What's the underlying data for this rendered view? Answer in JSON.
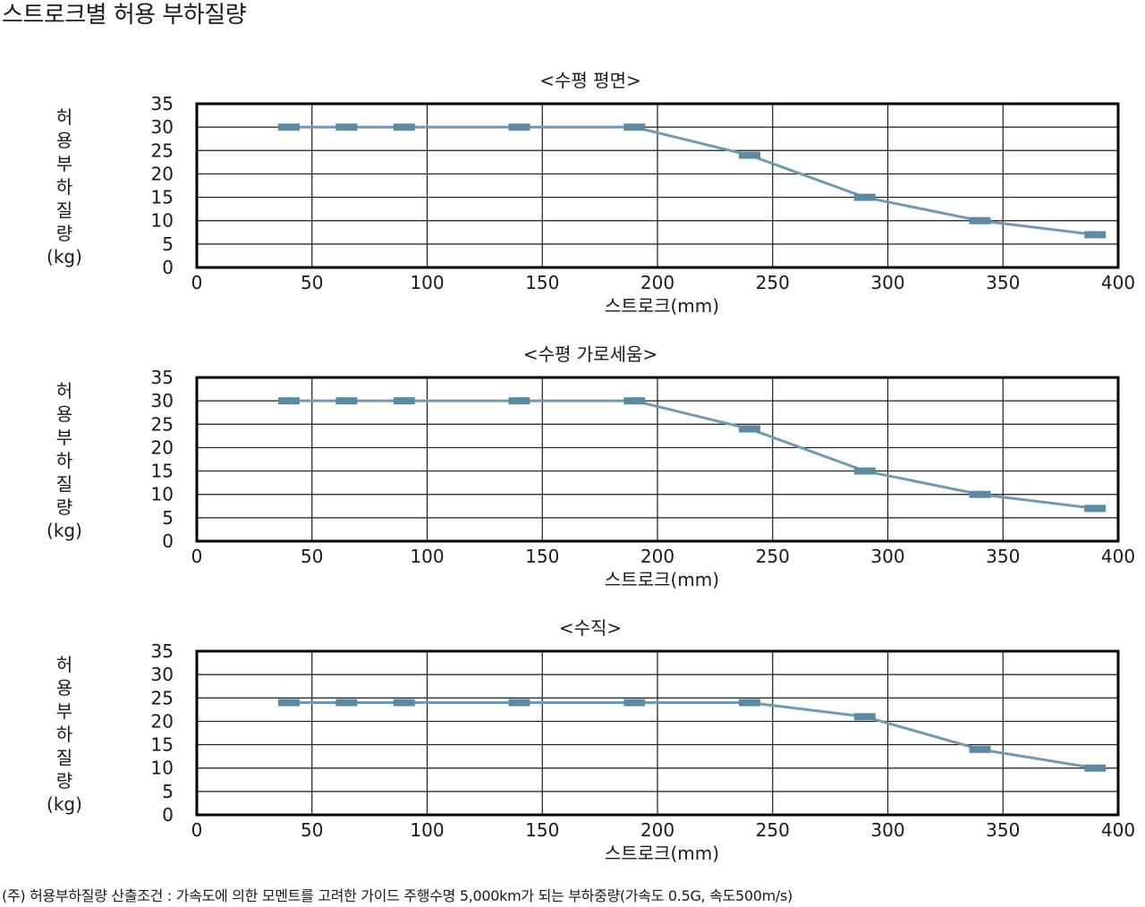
{
  "page": {
    "title": "스트로크별 허용 부하질량",
    "footnote": "(주) 허용부하질량 산출조건 : 가속도에 의한 모멘트를 고려한 가이드 주행수명 5,000km가 되는 부하중량(가속도 0.5G, 속도500m/s)"
  },
  "colors": {
    "series": "#6f9ab0",
    "marker": "#5b8aa3",
    "grid": "#1a1a1a",
    "frame": "#000000"
  },
  "chart_data": [
    {
      "type": "line",
      "title": "<수평 평면>",
      "xlabel": "스트로크(mm)",
      "ylabel_chars": [
        "허",
        "용",
        "부",
        "하",
        "질",
        "량",
        "(kg)"
      ],
      "xlim": [
        0,
        400
      ],
      "ylim": [
        0,
        35
      ],
      "x_ticks": [
        "0",
        "50",
        "100",
        "150",
        "200",
        "250",
        "300",
        "350",
        "400"
      ],
      "y_ticks": [
        "35",
        "30",
        "25",
        "20",
        "15",
        "10",
        "5",
        "0"
      ],
      "grid": true,
      "series": [
        {
          "x": [
            40,
            65,
            90,
            140,
            190,
            240,
            290,
            340,
            390
          ],
          "values": [
            30,
            30,
            30,
            30,
            30,
            24,
            15,
            10,
            7
          ]
        }
      ]
    },
    {
      "type": "line",
      "title": "<수평 가로세움>",
      "xlabel": "스트로크(mm)",
      "ylabel_chars": [
        "허",
        "용",
        "부",
        "하",
        "질",
        "량",
        "(kg)"
      ],
      "xlim": [
        0,
        400
      ],
      "ylim": [
        0,
        35
      ],
      "x_ticks": [
        "0",
        "50",
        "100",
        "150",
        "200",
        "250",
        "300",
        "350",
        "400"
      ],
      "y_ticks": [
        "35",
        "30",
        "25",
        "20",
        "15",
        "10",
        "5",
        "0"
      ],
      "grid": true,
      "series": [
        {
          "x": [
            40,
            65,
            90,
            140,
            190,
            240,
            290,
            340,
            390
          ],
          "values": [
            30,
            30,
            30,
            30,
            30,
            24,
            15,
            10,
            7
          ]
        }
      ]
    },
    {
      "type": "line",
      "title": "<수직>",
      "xlabel": "스트로크(mm)",
      "ylabel_chars": [
        "허",
        "용",
        "부",
        "하",
        "질",
        "량",
        "(kg)"
      ],
      "xlim": [
        0,
        400
      ],
      "ylim": [
        0,
        35
      ],
      "x_ticks": [
        "0",
        "50",
        "100",
        "150",
        "200",
        "250",
        "300",
        "350",
        "400"
      ],
      "y_ticks": [
        "35",
        "30",
        "25",
        "20",
        "15",
        "10",
        "5",
        "0"
      ],
      "grid": true,
      "series": [
        {
          "x": [
            40,
            65,
            90,
            140,
            190,
            240,
            290,
            340,
            390
          ],
          "values": [
            24,
            24,
            24,
            24,
            24,
            24,
            21,
            14,
            10
          ]
        }
      ]
    }
  ]
}
